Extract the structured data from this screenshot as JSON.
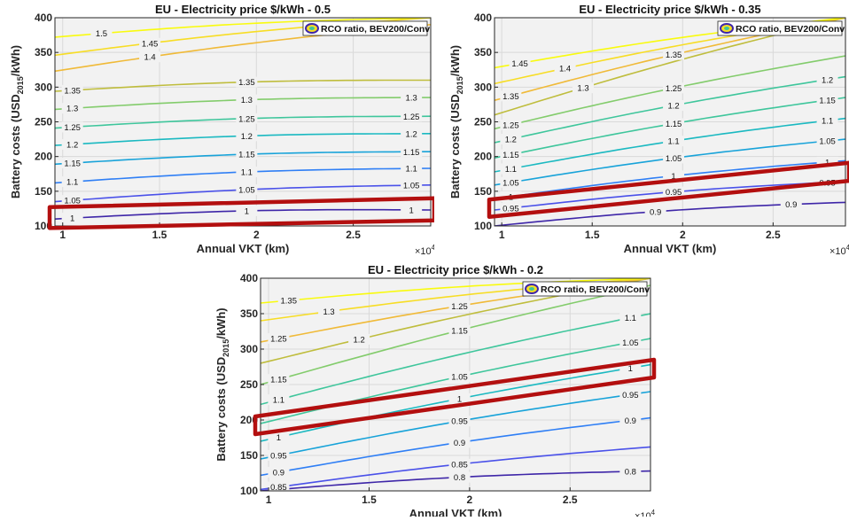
{
  "colors": {
    "highlight": "#b30f0f",
    "plot_bg": "#f2f2f2",
    "grid": "#d9d9d9",
    "ramp": [
      "#3e26a8",
      "#4a51e9",
      "#2f7ff5",
      "#18a3d9",
      "#1bb9c1",
      "#3fc69c",
      "#83cc6c",
      "#bfbd3d",
      "#f0ba38",
      "#f7dd25",
      "#f9fb0e"
    ]
  },
  "chart_data": [
    {
      "type": "contour",
      "title": "EU - Electricity price $/kWh - 0.5",
      "xlabel": "Annual VKT (km)",
      "ylabel_main": "Battery costs (USD",
      "ylabel_sub": "2015",
      "ylabel_tail": "/kWh)",
      "x_exponent_base": "×10",
      "x_exponent_power": "4",
      "legend": "RCO ratio, BEV200/Conv",
      "xlim": [
        0.96,
        2.9
      ],
      "ylim": [
        100,
        400
      ],
      "x_ticks": [
        1,
        1.5,
        2,
        2.5
      ],
      "x_tick_labels": [
        "1",
        "1.5",
        "2",
        "2.5"
      ],
      "y_ticks": [
        100,
        150,
        200,
        250,
        300,
        350,
        400
      ],
      "y_tick_labels": [
        "100",
        "150",
        "200",
        "250",
        "300",
        "350",
        "400"
      ],
      "levels": [
        {
          "level": "1",
          "y0": 110,
          "y1": 123,
          "label_x": [
            1.05,
            1.95,
            2.8
          ]
        },
        {
          "level": "1.05",
          "y0": 135,
          "y1": 159,
          "label_x": [
            1.05,
            1.95,
            2.8
          ]
        },
        {
          "level": "1.1",
          "y0": 162,
          "y1": 183,
          "label_x": [
            1.05,
            1.95,
            2.8
          ]
        },
        {
          "level": "1.15",
          "y0": 189,
          "y1": 207,
          "label_x": [
            1.05,
            1.95,
            2.8
          ]
        },
        {
          "level": "1.2",
          "y0": 216,
          "y1": 233,
          "label_x": [
            1.05,
            1.95,
            2.8
          ]
        },
        {
          "level": "1.25",
          "y0": 241,
          "y1": 258,
          "label_x": [
            1.05,
            1.95,
            2.8
          ]
        },
        {
          "level": "1.3",
          "y0": 268,
          "y1": 285,
          "label_x": [
            1.05,
            1.95,
            2.8
          ]
        },
        {
          "level": "1.35",
          "y0": 294,
          "y1": 310,
          "label_x": [
            1.05,
            1.95
          ]
        },
        {
          "level": "1.4",
          "y0": 323,
          "y1": 390,
          "label_x": [
            1.45
          ]
        },
        {
          "level": "1.45",
          "y0": 346,
          "y1": 400,
          "label_x": [
            1.45
          ]
        },
        {
          "level": "1.5",
          "y0": 372,
          "y1": 400,
          "label_x": [
            1.2
          ]
        }
      ],
      "highlight_band": {
        "x": [
          0.96,
          2.9
        ],
        "y_left": [
          127,
          97
        ],
        "y_right": [
          140,
          108
        ]
      }
    },
    {
      "type": "contour",
      "title": "EU - Electricity price $/kWh - 0.35",
      "xlabel": "Annual VKT (km)",
      "ylabel_main": "Battery costs (USD",
      "ylabel_sub": "2015",
      "ylabel_tail": "/kWh)",
      "x_exponent_base": "×10",
      "x_exponent_power": "4",
      "legend": "RCO ratio, BEV200/Conv",
      "xlim": [
        0.96,
        2.9
      ],
      "ylim": [
        100,
        400
      ],
      "x_ticks": [
        1,
        1.5,
        2,
        2.5
      ],
      "x_tick_labels": [
        "1",
        "1.5",
        "2",
        "2.5"
      ],
      "y_ticks": [
        100,
        150,
        200,
        250,
        300,
        350,
        400
      ],
      "y_tick_labels": [
        "100",
        "150",
        "200",
        "250",
        "300",
        "350",
        "400"
      ],
      "levels": [
        {
          "level": "0.9",
          "y0": 100,
          "y1": 134,
          "label_x": [
            1.85,
            2.6
          ]
        },
        {
          "level": "0.95",
          "y0": 123,
          "y1": 164,
          "label_x": [
            1.05,
            1.95,
            2.8
          ]
        },
        {
          "level": "1",
          "y0": 139,
          "y1": 194,
          "label_x": [
            1.05,
            1.95,
            2.8
          ]
        },
        {
          "level": "1.05",
          "y0": 159,
          "y1": 225,
          "label_x": [
            1.05,
            1.95,
            2.8
          ]
        },
        {
          "level": "1.1",
          "y0": 178,
          "y1": 255,
          "label_x": [
            1.05,
            1.95,
            2.8
          ]
        },
        {
          "level": "1.15",
          "y0": 198,
          "y1": 285,
          "label_x": [
            1.05,
            1.95,
            2.8
          ]
        },
        {
          "level": "1.2",
          "y0": 220,
          "y1": 315,
          "label_x": [
            1.05,
            1.95,
            2.8
          ]
        },
        {
          "level": "1.25",
          "y0": 240,
          "y1": 345,
          "label_x": [
            1.05,
            1.95
          ]
        },
        {
          "level": "1.3",
          "y0": 260,
          "y1": 400,
          "label_x": [
            1.45
          ]
        },
        {
          "level": "1.35",
          "y0": 281,
          "y1": 400,
          "label_x": [
            1.05,
            1.95
          ]
        },
        {
          "level": "1.4",
          "y0": 305,
          "y1": 400,
          "label_x": [
            1.35
          ]
        },
        {
          "level": "1.45",
          "y0": 328,
          "y1": 400,
          "label_x": [
            1.1
          ]
        }
      ],
      "highlight_band": {
        "x": [
          0.96,
          2.9
        ],
        "y_left": [
          113,
          138
        ],
        "y_right": [
          165,
          191
        ]
      }
    },
    {
      "type": "contour",
      "title": "EU - Electricity price $/kWh - 0.2",
      "xlabel": "Annual VKT (km)",
      "ylabel_main": "Battery costs (USD",
      "ylabel_sub": "2015",
      "ylabel_tail": "/kWh)",
      "x_exponent_base": "×10",
      "x_exponent_power": "4",
      "legend": "RCO ratio, BEV200/Conv",
      "xlim": [
        0.96,
        2.9
      ],
      "ylim": [
        100,
        400
      ],
      "x_ticks": [
        1,
        1.5,
        2,
        2.5
      ],
      "x_tick_labels": [
        "1",
        "1.5",
        "2",
        "2.5"
      ],
      "y_ticks": [
        100,
        150,
        200,
        250,
        300,
        350,
        400
      ],
      "y_tick_labels": [
        "100",
        "150",
        "200",
        "250",
        "300",
        "350",
        "400"
      ],
      "levels": [
        {
          "level": "0.8",
          "y0": 100,
          "y1": 128,
          "label_x": [
            1.95,
            2.8
          ]
        },
        {
          "level": "0.85",
          "y0": 102,
          "y1": 162,
          "label_x": [
            1.05,
            1.95
          ]
        },
        {
          "level": "0.9",
          "y0": 122,
          "y1": 203,
          "label_x": [
            1.05,
            1.95,
            2.8
          ]
        },
        {
          "level": "0.95",
          "y0": 145,
          "y1": 240,
          "label_x": [
            1.05,
            1.95,
            2.8
          ]
        },
        {
          "level": "1",
          "y0": 170,
          "y1": 278,
          "label_x": [
            1.05,
            1.95,
            2.8
          ]
        },
        {
          "level": "1.05",
          "y0": 195,
          "y1": 315,
          "label_x": [
            1.95,
            2.8
          ]
        },
        {
          "level": "1.1",
          "y0": 222,
          "y1": 350,
          "label_x": [
            1.05,
            2.8
          ]
        },
        {
          "level": "1.15",
          "y0": 250,
          "y1": 390,
          "label_x": [
            1.05,
            1.95
          ]
        },
        {
          "level": "1.2",
          "y0": 280,
          "y1": 400,
          "label_x": [
            1.45
          ]
        },
        {
          "level": "1.25",
          "y0": 310,
          "y1": 400,
          "label_x": [
            1.05,
            1.95
          ]
        },
        {
          "level": "1.3",
          "y0": 340,
          "y1": 400,
          "label_x": [
            1.3
          ]
        },
        {
          "level": "1.35",
          "y0": 365,
          "y1": 400,
          "label_x": [
            1.1
          ]
        }
      ],
      "highlight_band": {
        "x": [
          0.96,
          2.9
        ],
        "y_left": [
          180,
          205
        ],
        "y_right": [
          260,
          285
        ]
      }
    }
  ]
}
